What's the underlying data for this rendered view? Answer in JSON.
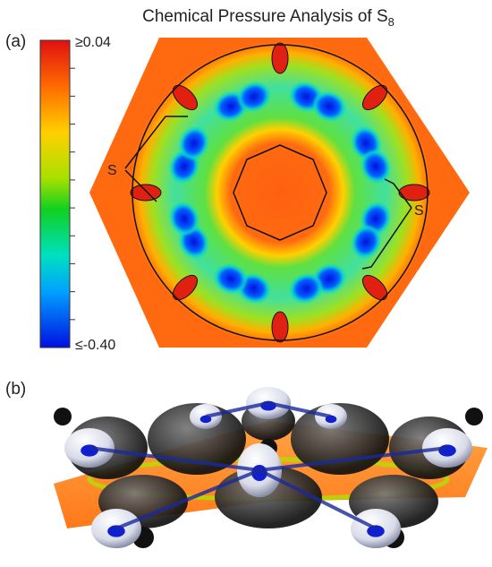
{
  "figure": {
    "title": {
      "text": "Chemical Pressure Analysis of S",
      "subscript": "8"
    },
    "panel_a": {
      "label": "(a)",
      "colorbar": {
        "max_label": "≥0.04",
        "min_label": "≤-0.40"
      },
      "atom_labels": [
        "S",
        "S"
      ]
    },
    "panel_b": {
      "label": "(b)"
    }
  }
}
